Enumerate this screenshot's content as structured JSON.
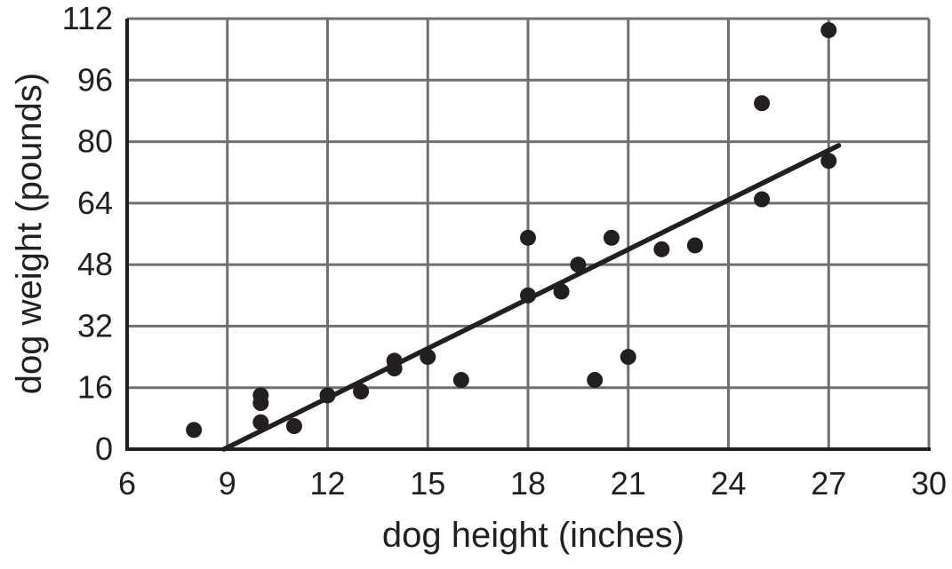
{
  "chart_data": {
    "type": "scatter",
    "title": "",
    "xlabel": "dog height (inches)",
    "ylabel": "dog weight (pounds)",
    "xlim": [
      6,
      30
    ],
    "ylim": [
      0,
      112
    ],
    "x_ticks": [
      6,
      9,
      12,
      15,
      18,
      21,
      24,
      27,
      30
    ],
    "y_ticks": [
      0,
      16,
      32,
      48,
      64,
      80,
      96,
      112
    ],
    "grid": true,
    "legend": "none",
    "points": [
      [
        8,
        5
      ],
      [
        10,
        7
      ],
      [
        10,
        12
      ],
      [
        10,
        14
      ],
      [
        11,
        6
      ],
      [
        12,
        14
      ],
      [
        13,
        15
      ],
      [
        14,
        21
      ],
      [
        14,
        23
      ],
      [
        15,
        24
      ],
      [
        16,
        18
      ],
      [
        18,
        40
      ],
      [
        18,
        55
      ],
      [
        19,
        41
      ],
      [
        19.5,
        48
      ],
      [
        20,
        18
      ],
      [
        20.5,
        55
      ],
      [
        21,
        24
      ],
      [
        22,
        52
      ],
      [
        23,
        53
      ],
      [
        25,
        65
      ],
      [
        25,
        90
      ],
      [
        27,
        75
      ],
      [
        27,
        109
      ]
    ],
    "trend_line": {
      "x1": 8.9,
      "y1": 0,
      "x2": 27.3,
      "y2": 79
    },
    "point_radius_px": 9,
    "colors": {
      "point": "#231f20",
      "trend_line": "#231f20",
      "grid": "#6e6f72",
      "axis": "#231f20",
      "text": "#231f20",
      "background": "#ffffff"
    }
  }
}
